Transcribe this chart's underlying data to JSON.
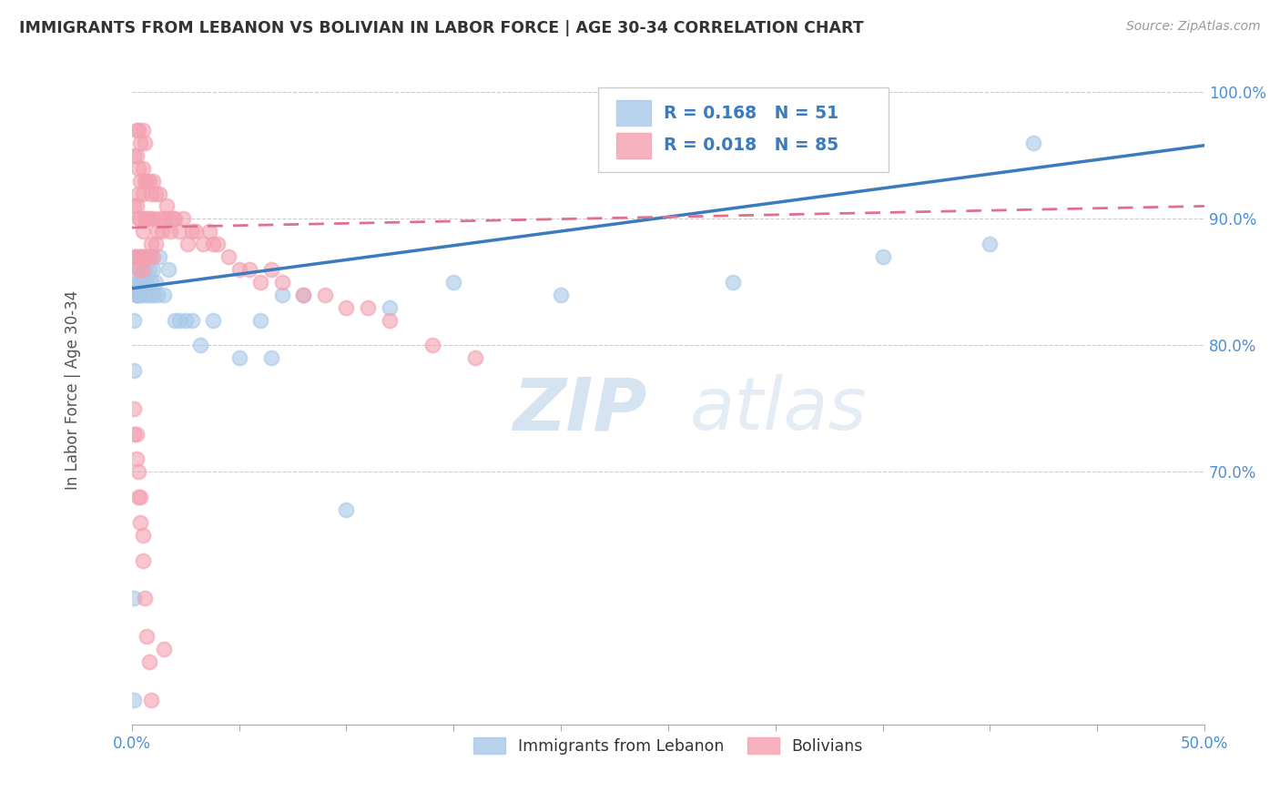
{
  "title": "IMMIGRANTS FROM LEBANON VS BOLIVIAN IN LABOR FORCE | AGE 30-34 CORRELATION CHART",
  "source": "Source: ZipAtlas.com",
  "ylabel": "In Labor Force | Age 30-34",
  "xlim": [
    0.0,
    0.5
  ],
  "ylim": [
    0.5,
    1.03
  ],
  "xticks_major": [
    0.0,
    0.5
  ],
  "xticks_minor": [
    0.0,
    0.05,
    0.1,
    0.15,
    0.2,
    0.25,
    0.3,
    0.35,
    0.4,
    0.45,
    0.5
  ],
  "xtick_labels_major": [
    "0.0%",
    "50.0%"
  ],
  "ytick_positions": [
    0.7,
    0.8,
    0.9,
    1.0
  ],
  "ytick_labels": [
    "70.0%",
    "80.0%",
    "90.0%",
    "100.0%"
  ],
  "lebanon_color": "#a8c8e8",
  "bolivian_color": "#f4a0b0",
  "lebanon_line_color": "#3a7abf",
  "bolivian_line_color": "#e07090",
  "lebanon_R": 0.168,
  "lebanon_N": 51,
  "bolivian_R": 0.018,
  "bolivian_N": 85,
  "watermark_zip": "ZIP",
  "watermark_atlas": "atlas",
  "legend_label_1": "Immigrants from Lebanon",
  "legend_label_2": "Bolivians",
  "leb_trend_y0": 0.845,
  "leb_trend_y1": 0.958,
  "bol_trend_y0": 0.893,
  "bol_trend_y1": 0.91,
  "lebanon_x": [
    0.001,
    0.001,
    0.001,
    0.001,
    0.002,
    0.002,
    0.002,
    0.002,
    0.003,
    0.003,
    0.003,
    0.004,
    0.004,
    0.004,
    0.004,
    0.005,
    0.005,
    0.006,
    0.006,
    0.007,
    0.007,
    0.008,
    0.008,
    0.009,
    0.009,
    0.01,
    0.01,
    0.011,
    0.012,
    0.013,
    0.015,
    0.017,
    0.02,
    0.022,
    0.025,
    0.028,
    0.032,
    0.038,
    0.05,
    0.06,
    0.065,
    0.07,
    0.08,
    0.1,
    0.12,
    0.15,
    0.2,
    0.28,
    0.35,
    0.4,
    0.42
  ],
  "lebanon_y": [
    0.52,
    0.6,
    0.78,
    0.82,
    0.84,
    0.84,
    0.85,
    0.87,
    0.84,
    0.85,
    0.86,
    0.84,
    0.85,
    0.86,
    0.87,
    0.85,
    0.87,
    0.84,
    0.86,
    0.85,
    0.87,
    0.84,
    0.86,
    0.85,
    0.87,
    0.84,
    0.86,
    0.85,
    0.84,
    0.87,
    0.84,
    0.86,
    0.82,
    0.82,
    0.82,
    0.82,
    0.8,
    0.82,
    0.79,
    0.82,
    0.79,
    0.84,
    0.84,
    0.67,
    0.83,
    0.85,
    0.84,
    0.85,
    0.87,
    0.88,
    0.96
  ],
  "bolivian_x": [
    0.001,
    0.001,
    0.001,
    0.002,
    0.002,
    0.002,
    0.002,
    0.003,
    0.003,
    0.003,
    0.003,
    0.003,
    0.004,
    0.004,
    0.004,
    0.004,
    0.005,
    0.005,
    0.005,
    0.005,
    0.005,
    0.006,
    0.006,
    0.006,
    0.006,
    0.007,
    0.007,
    0.007,
    0.008,
    0.008,
    0.008,
    0.009,
    0.009,
    0.01,
    0.01,
    0.01,
    0.011,
    0.011,
    0.012,
    0.013,
    0.013,
    0.014,
    0.015,
    0.016,
    0.017,
    0.018,
    0.019,
    0.02,
    0.022,
    0.024,
    0.026,
    0.028,
    0.03,
    0.033,
    0.036,
    0.038,
    0.04,
    0.045,
    0.05,
    0.055,
    0.06,
    0.065,
    0.07,
    0.08,
    0.09,
    0.1,
    0.11,
    0.12,
    0.14,
    0.16,
    0.001,
    0.001,
    0.002,
    0.002,
    0.003,
    0.003,
    0.004,
    0.004,
    0.005,
    0.005,
    0.006,
    0.007,
    0.008,
    0.009,
    0.015
  ],
  "bolivian_y": [
    0.87,
    0.91,
    0.95,
    0.87,
    0.91,
    0.95,
    0.97,
    0.86,
    0.9,
    0.92,
    0.94,
    0.97,
    0.87,
    0.9,
    0.93,
    0.96,
    0.86,
    0.89,
    0.92,
    0.94,
    0.97,
    0.87,
    0.9,
    0.93,
    0.96,
    0.87,
    0.9,
    0.93,
    0.87,
    0.9,
    0.93,
    0.88,
    0.92,
    0.87,
    0.9,
    0.93,
    0.88,
    0.92,
    0.89,
    0.9,
    0.92,
    0.89,
    0.9,
    0.91,
    0.9,
    0.89,
    0.9,
    0.9,
    0.89,
    0.9,
    0.88,
    0.89,
    0.89,
    0.88,
    0.89,
    0.88,
    0.88,
    0.87,
    0.86,
    0.86,
    0.85,
    0.86,
    0.85,
    0.84,
    0.84,
    0.83,
    0.83,
    0.82,
    0.8,
    0.79,
    0.73,
    0.75,
    0.71,
    0.73,
    0.68,
    0.7,
    0.66,
    0.68,
    0.63,
    0.65,
    0.6,
    0.57,
    0.55,
    0.52,
    0.56
  ]
}
